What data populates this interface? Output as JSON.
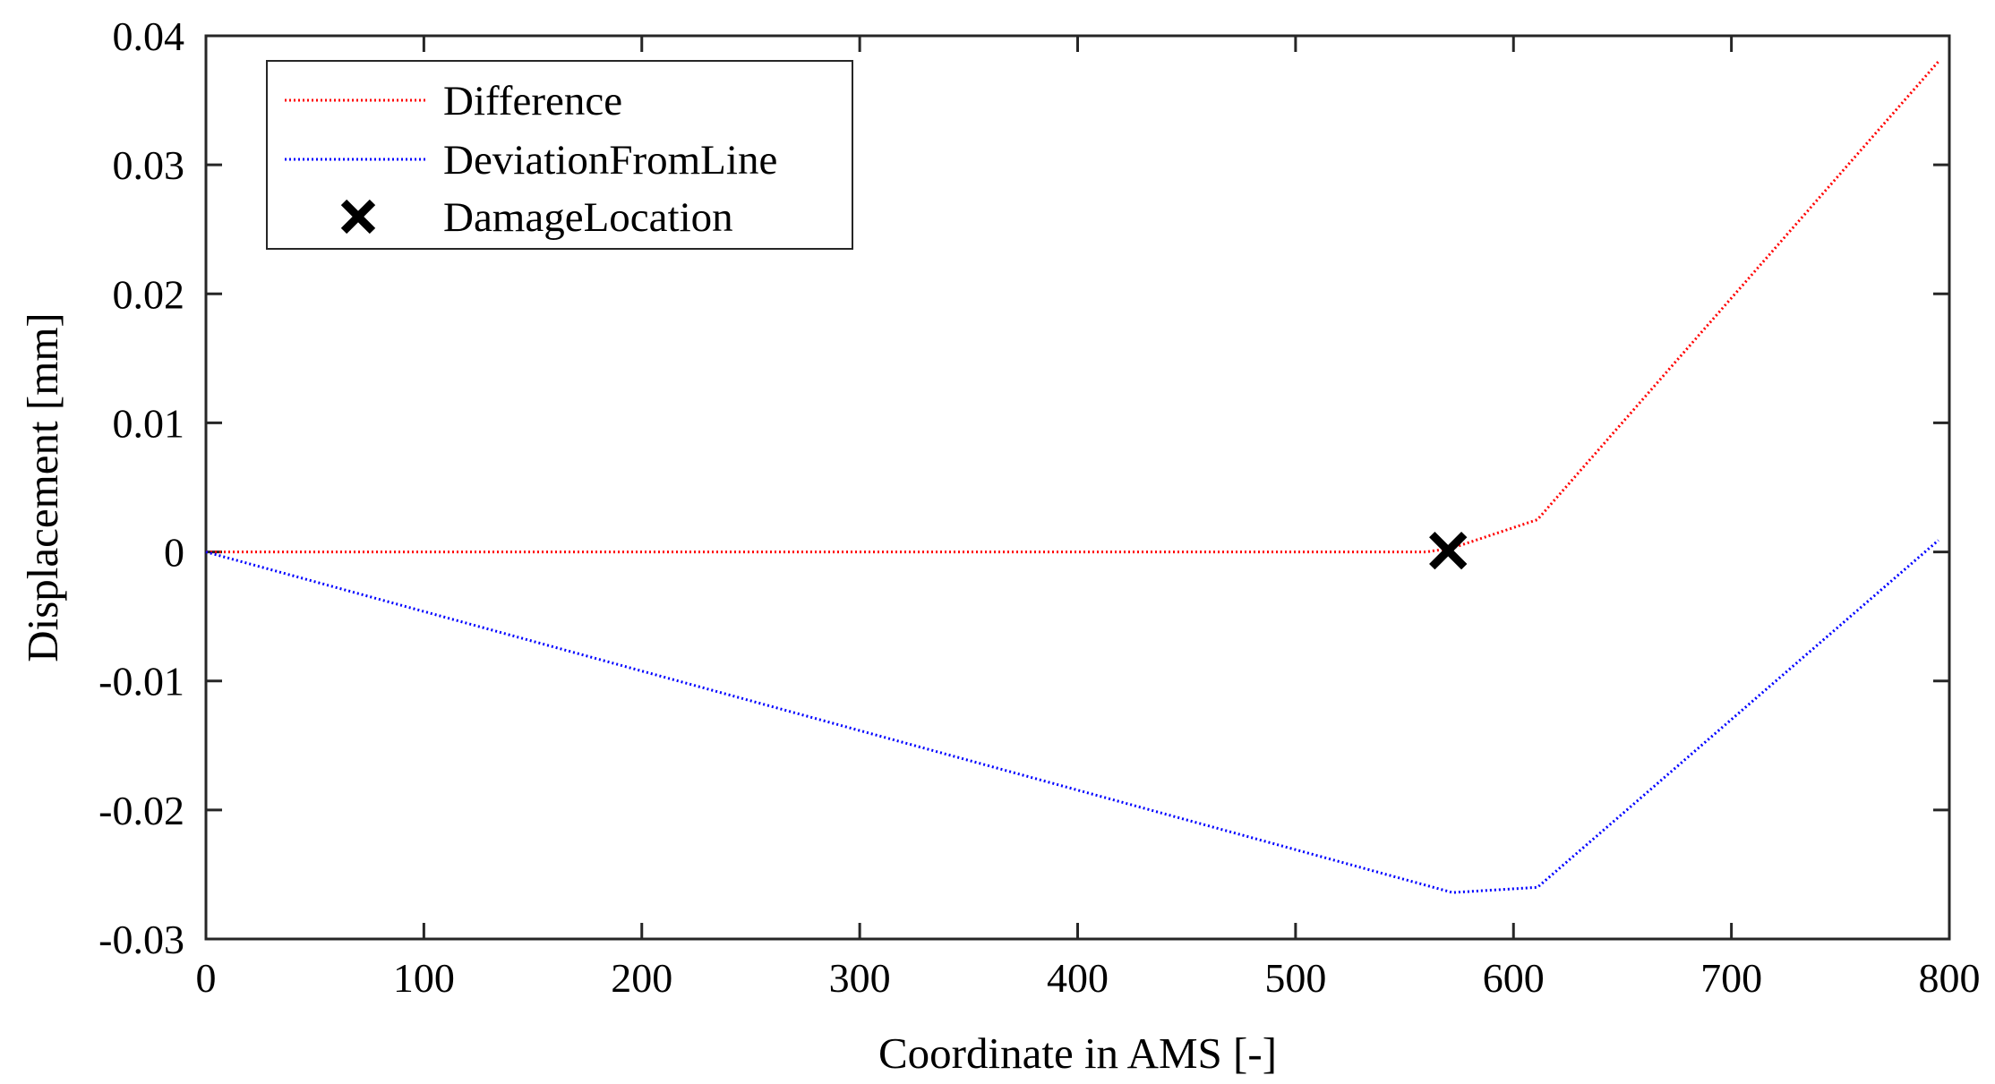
{
  "chart_data": {
    "type": "line",
    "title": "",
    "xlabel": "Coordinate in AMS [-]",
    "ylabel": "Displacement [mm]",
    "xlim": [
      0,
      800
    ],
    "ylim": [
      -0.03,
      0.04
    ],
    "xticks": [
      0,
      100,
      200,
      300,
      400,
      500,
      600,
      700,
      800
    ],
    "xtick_labels": [
      "0",
      "100",
      "200",
      "300",
      "400",
      "500",
      "600",
      "700",
      "800"
    ],
    "yticks": [
      -0.03,
      -0.02,
      -0.01,
      0,
      0.01,
      0.02,
      0.03,
      0.04
    ],
    "ytick_labels": [
      "-0.03",
      "-0.02",
      "-0.01",
      "0",
      "0.01",
      "0.02",
      "0.03",
      "0.04"
    ],
    "grid": false,
    "legend_position": "top-left",
    "series": [
      {
        "name": "Difference",
        "style": "dotted line",
        "color": "#ff0000",
        "x": [
          0,
          560,
          572,
          611,
          795
        ],
        "y": [
          0,
          0,
          0.0003,
          0.0025,
          0.038
        ]
      },
      {
        "name": "DeviationFromLine",
        "style": "dotted line",
        "color": "#0000ff",
        "x": [
          0,
          572,
          611,
          795
        ],
        "y": [
          0,
          -0.0264,
          -0.026,
          0.0009
        ]
      },
      {
        "name": "DamageLocation",
        "style": "marker x",
        "color": "#000000",
        "x": [
          570
        ],
        "y": [
          0.0001
        ]
      }
    ]
  }
}
